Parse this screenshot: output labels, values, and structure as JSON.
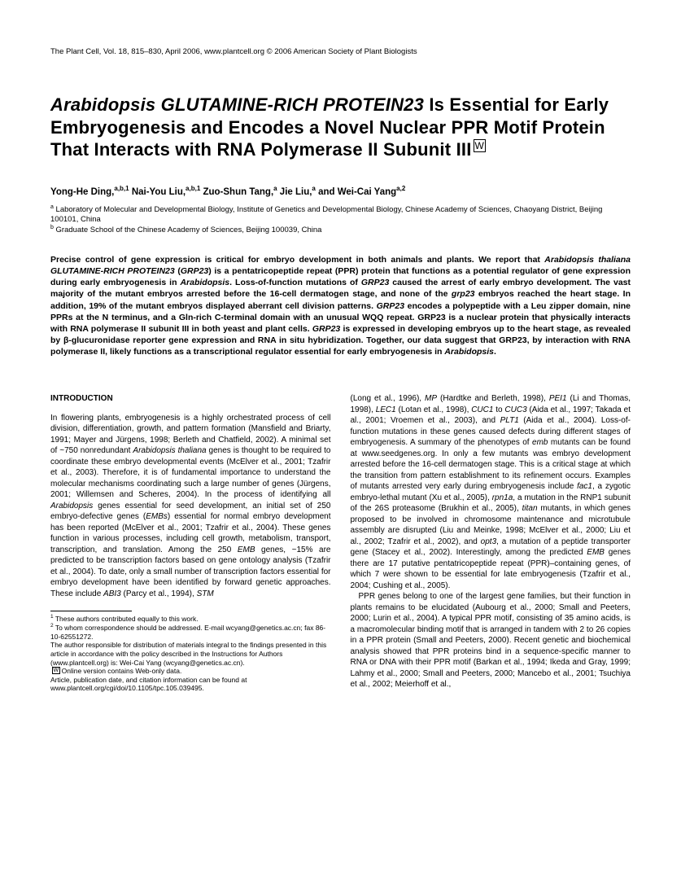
{
  "header": {
    "meta": "The Plant Cell, Vol. 18, 815–830, April 2006, www.plantcell.org © 2006 American Society of Plant Biologists"
  },
  "title": {
    "italic1": "Arabidopsis GLUTAMINE-RICH PROTEIN23",
    "rest": " Is Essential for Early Embryogenesis and Encodes a Novel Nuclear PPR Motif Protein That Interacts with RNA Polymerase II Subunit III"
  },
  "authors": {
    "a1": "Yong-He Ding,",
    "s1": "a,b,1",
    "a2": " Nai-You Liu,",
    "s2": "a,b,1",
    "a3": " Zuo-Shun Tang,",
    "s3": "a",
    "a4": " Jie Liu,",
    "s4": "a",
    "a5": " and Wei-Cai Yang",
    "s5": "a,2"
  },
  "affil": {
    "a": "a",
    "atext": " Laboratory of Molecular and Developmental Biology, Institute of Genetics and Developmental Biology, Chinese Academy of Sciences, Chaoyang District, Beijing 100101, China",
    "b": "b",
    "btext": " Graduate School of the Chinese Academy of Sciences, Beijing 100039, China"
  },
  "abstract": {
    "t1": "Precise control of gene expression is critical for embryo development in both animals and plants. We report that ",
    "i1": "Arabidopsis thaliana GLUTAMINE-RICH PROTEIN23",
    "t2": " (",
    "i2": "GRP23",
    "t3": ") is a pentatricopeptide repeat (PPR) protein that functions as a potential regulator of gene expression during early embryogenesis in ",
    "i3": "Arabidopsis",
    "t4": ". Loss-of-function mutations of ",
    "i4": "GRP23",
    "t5": " caused the arrest of early embryo development. The vast majority of the mutant embryos arrested before the 16-cell dermatogen stage, and none of the ",
    "i5": "grp23",
    "t6": " embryos reached the heart stage. In addition, 19% of the mutant embryos displayed aberrant cell division patterns. ",
    "i6": "GRP23",
    "t7": " encodes a polypeptide with a Leu zipper domain, nine PPRs at the N terminus, and a Gln-rich C-terminal domain with an unusual WQQ repeat. GRP23 is a nuclear protein that physically interacts with RNA polymerase II subunit III in both yeast and plant cells. ",
    "i7": "GRP23",
    "t8": " is expressed in developing embryos up to the heart stage, as revealed by β-glucuronidase reporter gene expression and RNA in situ hybridization. Together, our data suggest that GRP23, by interaction with RNA polymerase II, likely functions as a transcriptional regulator essential for early embryogenesis in ",
    "i8": "Arabidopsis",
    "t9": "."
  },
  "intro_heading": "INTRODUCTION",
  "col1": {
    "p1a": "In flowering plants, embryogenesis is a highly orchestrated process of cell division, differentiation, growth, and pattern formation (Mansfield and Briarty, 1991; Mayer and Jürgens, 1998; Berleth and Chatfield, 2002). A minimal set of ~750 nonredundant ",
    "p1i1": "Arabidopsis thaliana",
    "p1b": " genes is thought to be required to coordinate these embryo developmental events (McElver et al., 2001; Tzafrir et al., 2003). Therefore, it is of fundamental importance to understand the molecular mechanisms coordinating such a large number of genes (Jürgens, 2001; Willemsen and Scheres, 2004). In the process of identifying all ",
    "p1i2": "Arabidopsis",
    "p1c": " genes essential for seed development, an initial set of 250 embryo-defective genes (",
    "p1i3": "EMBs",
    "p1d": ") essential for normal embryo development has been reported (McElver et al., 2001; Tzafrir et al., 2004). These genes function in various processes, including cell growth, metabolism, transport, transcription, and translation. Among the 250 ",
    "p1i4": "EMB",
    "p1e": " genes, ~15% are predicted to be transcription factors based on gene ontology analysis (Tzafrir et al., 2004). To date, only a small number of transcription factors essential for embryo development have been identified by forward genetic approaches. These include ",
    "p1i5": "ABI3",
    "p1f": " (Parcy et al., 1994), ",
    "p1i6": "STM"
  },
  "col2": {
    "p1a": "(Long et al., 1996), ",
    "i1": "MP",
    "p1b": " (Hardtke and Berleth, 1998), ",
    "i2": "PEI1",
    "p1c": " (Li and Thomas, 1998), ",
    "i3": "LEC1",
    "p1d": " (Lotan et al., 1998), ",
    "i4": "CUC1",
    "p1e": " to ",
    "i5": "CUC3",
    "p1f": " (Aida et al., 1997; Takada et al., 2001; Vroemen et al., 2003), and ",
    "i6": "PLT1",
    "p1g": " (Aida et al., 2004). Loss-of-function mutations in these genes caused defects during different stages of embryogenesis. A summary of the phenotypes of ",
    "i7": "emb",
    "p1h": " mutants can be found at www.seedgenes.org. In only a few mutants was embryo development arrested before the 16-cell dermatogen stage. This is a critical stage at which the transition from pattern establishment to its refinement occurs. Examples of mutants arrested very early during embryogenesis include ",
    "i8": "fac1",
    "p1i": ", a zygotic embryo-lethal mutant (Xu et al., 2005), ",
    "i9": "rpn1a",
    "p1j": ", a mutation in the RNP1 subunit of the 26S proteasome (Brukhin et al., 2005), ",
    "i10": "titan",
    "p1k": " mutants, in which genes proposed to be involved in chromosome maintenance and microtubule assembly are disrupted (Liu and Meinke, 1998; McElver et al., 2000; Liu et al., 2002; Tzafrir et al., 2002), and ",
    "i11": "opt3",
    "p1l": ", a mutation of a peptide transporter gene (Stacey et al., 2002). Interestingly, among the predicted ",
    "i12": "EMB",
    "p1m": " genes there are 17 putative pentatricopeptide repeat (PPR)–containing genes, of which 7 were shown to be essential for late embryogenesis (Tzafrir et al., 2004; Cushing et al., 2005).",
    "p2a": "PPR genes belong to one of the largest gene families, but their function in plants remains to be elucidated (Aubourg et al., 2000; Small and Peeters, 2000; Lurin et al., 2004). A typical PPR motif, consisting of 35 amino acids, is a macromolecular binding motif that is arranged in tandem with 2 to 26 copies in a PPR protein (Small and Peeters, 2000). Recent genetic and biochemical analysis showed that PPR proteins bind in a sequence-specific manner to RNA or DNA with their PPR motif (Barkan et al., 1994; Ikeda and Gray, 1999; Lahmy et al., 2000; Small and Peeters, 2000; Mancebo et al., 2001; Tsuchiya et al., 2002; Meierhoff et al.,"
  },
  "footnotes": {
    "f1": " These authors contributed equally to this work.",
    "f2": " To whom correspondence should be addressed. E-mail wcyang@genetics.ac.cn; fax 86-10-62551272.",
    "f3": "The author responsible for distribution of materials integral to the findings presented in this article in accordance with the policy described in the Instructions for Authors (www.plantcell.org) is: Wei-Cai Yang (wcyang@genetics.ac.cn).",
    "f4": "Online version contains Web-only data.",
    "f5": "Article, publication date, and citation information can be found at www.plantcell.org/cgi/doi/10.1105/tpc.105.039495."
  }
}
